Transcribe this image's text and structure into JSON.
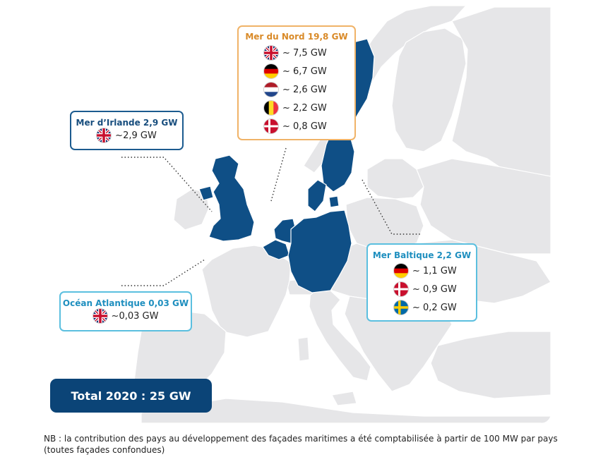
{
  "colors": {
    "land": "#e6e6e8",
    "border": "#ffffff",
    "highlight": "#0f4f86",
    "north_sea_frame": "#f0b368",
    "irish_frame": "#1c5b8f",
    "atlantic_baltic_frame": "#5bbfdf",
    "total_bg": "#0b4477"
  },
  "highlighted_countries": [
    "United Kingdom",
    "Belgium",
    "Netherlands",
    "Germany",
    "Denmark",
    "Sweden"
  ],
  "callouts": {
    "north_sea": {
      "title": "Mer du Nord 19,8 GW",
      "rows": [
        {
          "flag": "uk-flag-icon",
          "value": "~ 7,5 GW"
        },
        {
          "flag": "germany-flag-icon",
          "value": "~ 6,7 GW"
        },
        {
          "flag": "netherlands-flag-icon",
          "value": "~ 2,6 GW"
        },
        {
          "flag": "belgium-flag-icon",
          "value": "~ 2,2 GW"
        },
        {
          "flag": "denmark-flag-icon",
          "value": "~ 0,8 GW"
        }
      ]
    },
    "irish_sea": {
      "title": "Mer d’Irlande 2,9 GW",
      "rows": [
        {
          "flag": "uk-flag-icon",
          "value": "~2,9 GW"
        }
      ]
    },
    "atlantic": {
      "title": "Océan Atlantique 0,03 GW",
      "rows": [
        {
          "flag": "uk-flag-icon",
          "value": "~0,03 GW"
        }
      ]
    },
    "baltic": {
      "title": "Mer Baltique 2,2 GW",
      "rows": [
        {
          "flag": "germany-flag-icon",
          "value": "~ 1,1 GW"
        },
        {
          "flag": "denmark-flag-icon",
          "value": "~ 0,9 GW"
        },
        {
          "flag": "sweden-flag-icon",
          "value": "~ 0,2 GW"
        }
      ]
    }
  },
  "total": "Total 2020 : 25 GW",
  "note": "NB : la contribution des pays au développement des façades maritimes a été comptabilisée à partir de 100 MW par pays (toutes façades confondues)"
}
